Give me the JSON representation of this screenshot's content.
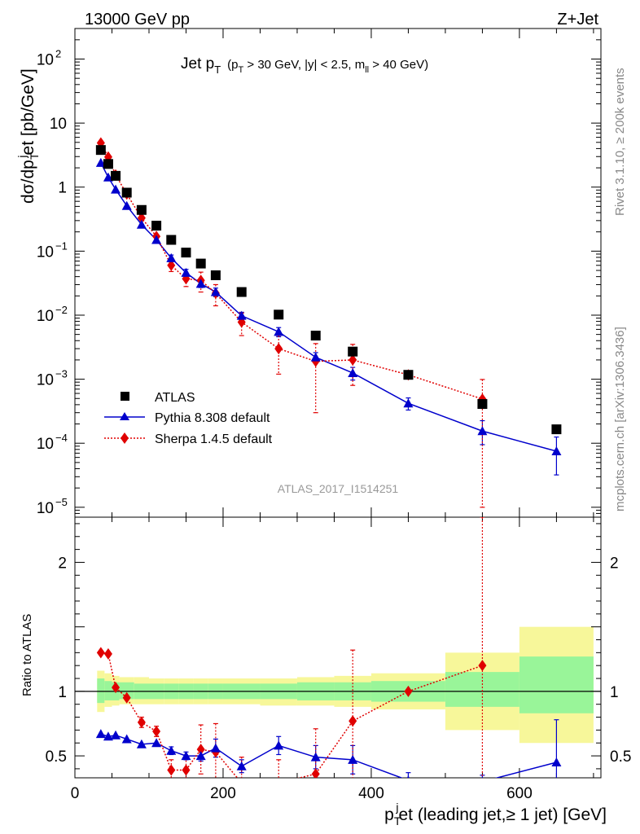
{
  "header": {
    "left": "13000 GeV pp",
    "right": "Z+Jet"
  },
  "side_labels": {
    "rivet": "Rivet 3.1.10, ≥ 200k events",
    "mcplots": "mcplots.cern.ch [arXiv:1306.3436]"
  },
  "plot_title": {
    "main": "Jet p",
    "main_sub": "T",
    "cuts_a": "(p",
    "cuts_a_sub": "T",
    "cuts_b": " > 30 GeV, |y| < 2.5, m",
    "cuts_b_sub": "ll",
    "cuts_c": " > 40 GeV)"
  },
  "analysis_id": "ATLAS_2017_I1514251",
  "y_axis_label": {
    "a": "dσ/dp",
    "a_sub": "T",
    "a_sup": "j",
    "b": "et [pb/GeV]"
  },
  "ratio_axis_label": "Ratio to ATLAS",
  "x_axis_label": {
    "a": "p",
    "a_sub": "T",
    "a_sup": "j",
    "b": "et (leading jet,≥ 1 jet) [GeV]"
  },
  "colors": {
    "atlas": "#000000",
    "pythia": "#0000cc",
    "sherpa": "#e00000",
    "band_inner": "#99f599",
    "band_outer": "#f7f79a"
  },
  "chart_data": {
    "type": "scatter",
    "x_scale": "linear",
    "y_scale": "log",
    "xlim": [
      0,
      710
    ],
    "ylim": [
      7e-06,
      300
    ],
    "ratio_ylim": [
      0.33,
      2.35
    ],
    "x_ticks": [
      0,
      200,
      400,
      600
    ],
    "y_ticks": [
      {
        "v": 100,
        "m": "10",
        "e": "2"
      },
      {
        "v": 10,
        "m": "10",
        "e": ""
      },
      {
        "v": 1,
        "m": "1",
        "e": ""
      },
      {
        "v": 0.1,
        "m": "10",
        "e": "−1"
      },
      {
        "v": 0.01,
        "m": "10",
        "e": "−2"
      },
      {
        "v": 0.001,
        "m": "10",
        "e": "−3"
      },
      {
        "v": 0.0001,
        "m": "10",
        "e": "−4"
      },
      {
        "v": 1e-05,
        "m": "10",
        "e": "−5"
      }
    ],
    "ratio_ticks": [
      {
        "v": 0.5,
        "label": "0.5"
      },
      {
        "v": 1,
        "label": "1"
      },
      {
        "v": 2,
        "label": "2"
      }
    ],
    "legend": {
      "position": "lower-left",
      "entries": [
        "ATLAS",
        "Pythia 8.308 default",
        "Sherpa 1.4.5 default"
      ]
    },
    "series": [
      {
        "name": "ATLAS",
        "marker": "square",
        "x": [
          35,
          45,
          55,
          70,
          90,
          110,
          130,
          150,
          170,
          190,
          225,
          275,
          325,
          375,
          450,
          550,
          650
        ],
        "y": [
          3.8,
          2.3,
          1.5,
          0.82,
          0.44,
          0.25,
          0.15,
          0.095,
          0.064,
          0.042,
          0.023,
          0.0102,
          0.0048,
          0.0027,
          0.00117,
          0.00041,
          0.000165
        ]
      },
      {
        "name": "Pythia 8.308 default",
        "marker": "triangle",
        "x": [
          35,
          45,
          55,
          70,
          90,
          110,
          130,
          150,
          170,
          190,
          225,
          275,
          325,
          375,
          450,
          550,
          650
        ],
        "y": [
          2.4,
          1.42,
          0.92,
          0.51,
          0.26,
          0.15,
          0.078,
          0.046,
          0.031,
          0.023,
          0.0098,
          0.0055,
          0.0022,
          0.00125,
          0.00042,
          0.000155,
          7.5e-05
        ],
        "err_up": [
          0,
          0,
          0,
          0,
          0,
          0,
          0.009,
          0.006,
          0.004,
          0.0035,
          0.0013,
          0.0009,
          0.0004,
          0.00028,
          9e-05,
          7e-05,
          5e-05
        ],
        "err_down": [
          0,
          0,
          0,
          0,
          0,
          0,
          0.009,
          0.006,
          0.004,
          0.0035,
          0.0013,
          0.0009,
          0.0004,
          0.00028,
          9e-05,
          6e-05,
          4.3e-05
        ]
      },
      {
        "name": "Sherpa 1.4.5 default",
        "marker": "diamond",
        "x": [
          35,
          45,
          55,
          70,
          90,
          110,
          130,
          150,
          170,
          190,
          225,
          275,
          325,
          375,
          450,
          550
        ],
        "y": [
          4.9,
          2.95,
          1.55,
          0.78,
          0.33,
          0.17,
          0.06,
          0.037,
          0.035,
          0.022,
          0.0078,
          0.003,
          0.0019,
          0.002,
          0.00117,
          0.00049
        ],
        "err_up": [
          0,
          0,
          0,
          0,
          0,
          0,
          0.012,
          0.009,
          0.012,
          0.008,
          0.003,
          0.0018,
          0.0017,
          0.0015,
          0,
          0.0005
        ],
        "err_down": [
          0,
          0,
          0,
          0,
          0,
          0,
          0.012,
          0.009,
          0.012,
          0.008,
          0.003,
          0.0018,
          0.0016,
          0.0012,
          0,
          0.00048
        ]
      }
    ],
    "ratio": {
      "bands": [
        {
          "x0": 30,
          "x1": 40,
          "inner": [
            0.91,
            1.1
          ],
          "outer": [
            0.84,
            1.16
          ]
        },
        {
          "x0": 40,
          "x1": 50,
          "inner": [
            0.93,
            1.08
          ],
          "outer": [
            0.88,
            1.14
          ]
        },
        {
          "x0": 50,
          "x1": 60,
          "inner": [
            0.93,
            1.07
          ],
          "outer": [
            0.89,
            1.12
          ]
        },
        {
          "x0": 60,
          "x1": 80,
          "inner": [
            0.94,
            1.07
          ],
          "outer": [
            0.9,
            1.11
          ]
        },
        {
          "x0": 80,
          "x1": 100,
          "inner": [
            0.94,
            1.06
          ],
          "outer": [
            0.9,
            1.11
          ]
        },
        {
          "x0": 100,
          "x1": 120,
          "inner": [
            0.94,
            1.06
          ],
          "outer": [
            0.9,
            1.1
          ]
        },
        {
          "x0": 120,
          "x1": 140,
          "inner": [
            0.94,
            1.06
          ],
          "outer": [
            0.9,
            1.1
          ]
        },
        {
          "x0": 140,
          "x1": 160,
          "inner": [
            0.94,
            1.06
          ],
          "outer": [
            0.9,
            1.1
          ]
        },
        {
          "x0": 160,
          "x1": 180,
          "inner": [
            0.94,
            1.06
          ],
          "outer": [
            0.9,
            1.1
          ]
        },
        {
          "x0": 180,
          "x1": 200,
          "inner": [
            0.94,
            1.06
          ],
          "outer": [
            0.9,
            1.1
          ]
        },
        {
          "x0": 200,
          "x1": 250,
          "inner": [
            0.94,
            1.06
          ],
          "outer": [
            0.9,
            1.1
          ]
        },
        {
          "x0": 250,
          "x1": 300,
          "inner": [
            0.94,
            1.06
          ],
          "outer": [
            0.89,
            1.1
          ]
        },
        {
          "x0": 300,
          "x1": 350,
          "inner": [
            0.93,
            1.07
          ],
          "outer": [
            0.89,
            1.11
          ]
        },
        {
          "x0": 350,
          "x1": 400,
          "inner": [
            0.93,
            1.07
          ],
          "outer": [
            0.88,
            1.12
          ]
        },
        {
          "x0": 400,
          "x1": 500,
          "inner": [
            0.92,
            1.08
          ],
          "outer": [
            0.86,
            1.14
          ]
        },
        {
          "x0": 500,
          "x1": 600,
          "inner": [
            0.88,
            1.15
          ],
          "outer": [
            0.7,
            1.3
          ]
        },
        {
          "x0": 600,
          "x1": 700,
          "inner": [
            0.83,
            1.27
          ],
          "outer": [
            0.6,
            1.5
          ]
        }
      ],
      "pythia": {
        "x": [
          35,
          45,
          55,
          70,
          90,
          110,
          130,
          150,
          170,
          190,
          225,
          275,
          325,
          375,
          450,
          550,
          650
        ],
        "y": [
          0.67,
          0.65,
          0.66,
          0.63,
          0.59,
          0.6,
          0.54,
          0.5,
          0.5,
          0.56,
          0.42,
          0.58,
          0.49,
          0.47,
          0.31,
          0.3,
          0.45
        ],
        "err": [
          0.02,
          0.02,
          0.02,
          0.02,
          0.02,
          0.02,
          0.03,
          0.03,
          0.04,
          0.07,
          0.05,
          0.07,
          0.09,
          0.11,
          0.06,
          0.05,
          0.33
        ]
      },
      "sherpa": {
        "x": [
          35,
          45,
          55,
          70,
          90,
          110,
          130,
          150,
          170,
          190,
          225,
          275,
          325,
          375,
          450,
          550
        ],
        "y": [
          1.3,
          1.29,
          1.03,
          0.95,
          0.76,
          0.69,
          0.39,
          0.39,
          0.55,
          0.53,
          0.29,
          0.29,
          0.36,
          0.77,
          1.0,
          1.2
        ],
        "err": [
          0.03,
          0.03,
          0.03,
          0.03,
          0.04,
          0.04,
          0.08,
          0.1,
          0.19,
          0.22,
          0.2,
          0.18,
          0.35,
          0.55,
          0,
          1.15
        ]
      }
    }
  }
}
